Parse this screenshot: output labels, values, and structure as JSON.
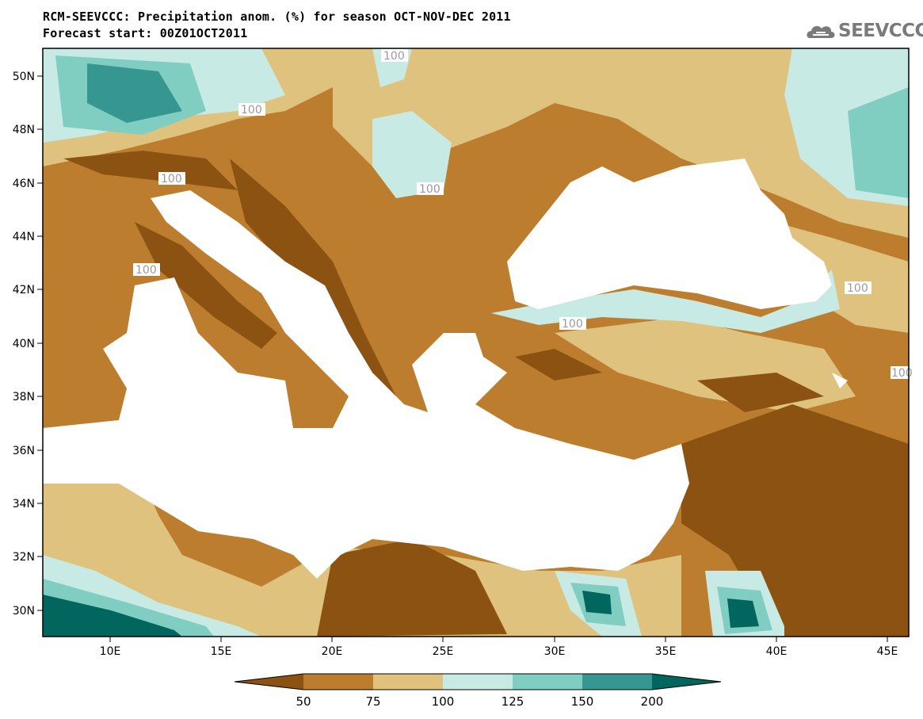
{
  "header": {
    "title_line1": "RCM-SEEVCCC: Precipitation anom. (%) for season OCT-NOV-DEC 2011",
    "title_line2": "Forecast start: 00Z01OCT2011",
    "logo_text": "SEEVCCC"
  },
  "map": {
    "lon_labels": [
      "10E",
      "15E",
      "20E",
      "25E",
      "30E",
      "35E",
      "40E",
      "45E"
    ],
    "lat_labels": [
      "50N",
      "48N",
      "46N",
      "44N",
      "42N",
      "40N",
      "38N",
      "36N",
      "34N",
      "32N",
      "30N"
    ],
    "contour_labels": [
      "100",
      "100",
      "100",
      "100",
      "100",
      "100",
      "100",
      "100"
    ],
    "land_colors": {
      "below_50": "#8c5211",
      "50_75": "#bc7d2e",
      "75_100": "#dfc27d",
      "100_125": "#c7eae5",
      "125_150": "#80cdc1",
      "150_200": "#35978f",
      "above_200": "#01665e",
      "sea": "#ffffff"
    }
  },
  "colorbar": {
    "labels": [
      "50",
      "75",
      "100",
      "125",
      "150",
      "200"
    ],
    "colors": [
      "#8c5211",
      "#bc7d2e",
      "#dfc27d",
      "#c7eae5",
      "#80cdc1",
      "#35978f",
      "#01665e"
    ]
  }
}
